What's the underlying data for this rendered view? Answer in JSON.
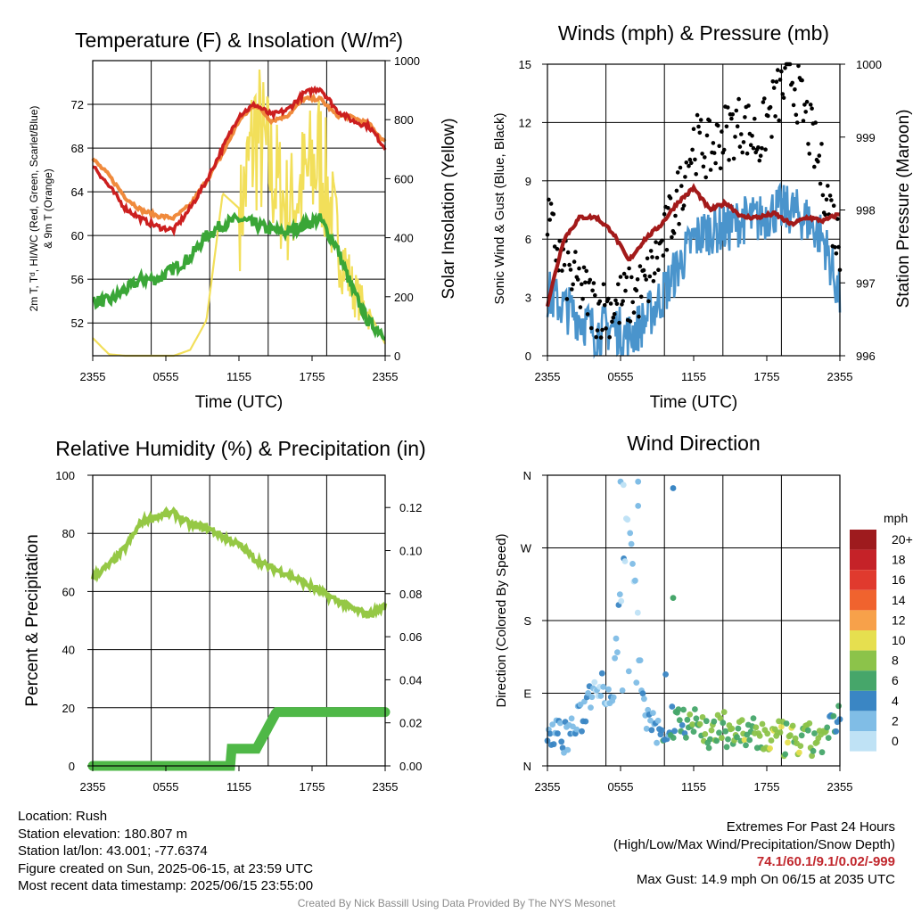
{
  "colors": {
    "temp": "#cc1f1f",
    "dewpoint": "#3aa637",
    "hiwc": "#e05a10",
    "temp9m": "#f08a3c",
    "insolation": "#f2df5a",
    "wind": "#4a94cc",
    "gust": "#000000",
    "pressure": "#a31a1a",
    "rh": "#95c845",
    "precip": "#4fb847"
  },
  "charts": [
    {
      "id": "temp",
      "title": "Temperature (F) & Insolation (W/m²)",
      "xlabel": "Time (UTC)",
      "ylabel_lines": [
        "2m T, Tᵈ, HI/WC (Red, Green, Scarlet/Blue)",
        "& 9m T (Orange)"
      ],
      "y2label": "Solar Insolation (Yellow)",
      "xticks": [
        "2355",
        "0555",
        "1155",
        "1755",
        "2355"
      ],
      "yticks": [
        "52",
        "56",
        "60",
        "64",
        "68",
        "72"
      ],
      "y2ticks": [
        "0",
        "200",
        "400",
        "600",
        "800",
        "1000"
      ]
    },
    {
      "id": "wind",
      "title": "Winds (mph) & Pressure (mb)",
      "xlabel": "Time (UTC)",
      "ylabel": "Sonic Wind & Gust (Blue, Black)",
      "y2label": "Station Pressure (Maroon)",
      "xticks": [
        "2355",
        "0555",
        "1155",
        "1755",
        "2355"
      ],
      "yticks": [
        "0",
        "3",
        "6",
        "9",
        "12",
        "15"
      ],
      "y2ticks": [
        "996",
        "997",
        "998",
        "999",
        "1000"
      ]
    },
    {
      "id": "rh",
      "title": "Relative Humidity (%) & Precipitation (in)",
      "ylabel": "Percent & Precipitation",
      "xticks": [
        "2355",
        "0555",
        "1155",
        "1755",
        "2355"
      ],
      "yticks": [
        "0",
        "20",
        "40",
        "60",
        "80",
        "100"
      ],
      "y2ticks": [
        "0.00",
        "0.02",
        "0.04",
        "0.06",
        "0.08",
        "0.10",
        "0.12"
      ]
    },
    {
      "id": "dir",
      "title": "Wind Direction",
      "ylabel": "Direction (Colored By Speed)",
      "xticks": [
        "2355",
        "0555",
        "1155",
        "1755",
        "2355"
      ],
      "yticks": [
        "N",
        "E",
        "S",
        "W",
        "N"
      ]
    }
  ],
  "legend": {
    "unit": "mph",
    "labels": [
      "20+",
      "18",
      "16",
      "14",
      "12",
      "10",
      "8",
      "6",
      "4",
      "2",
      "0"
    ],
    "colors": [
      "#9e1b1e",
      "#c52228",
      "#e03a2e",
      "#f0632e",
      "#f7a14a",
      "#e6df4f",
      "#8cc34a",
      "#46a66a",
      "#3a86c4",
      "#80bde6",
      "#bfe2f5"
    ]
  },
  "chart_data": [
    {
      "type": "line",
      "title": "Temperature (F) & Insolation (W/m²)",
      "xlabel": "Time (UTC)",
      "x": [
        "2355",
        "0155",
        "0355",
        "0555",
        "0755",
        "0955",
        "1155",
        "1255",
        "1355",
        "1455",
        "1555",
        "1655",
        "1755",
        "1855",
        "1955",
        "2055",
        "2155",
        "2255",
        "2355"
      ],
      "ylim": [
        49,
        76
      ],
      "y2lim": [
        0,
        1000
      ],
      "series": [
        {
          "name": "2m T",
          "axis": "left",
          "values": [
            66.5,
            64.5,
            62.5,
            61.5,
            60.8,
            60.5,
            62.5,
            65,
            68,
            71,
            72,
            71,
            71.5,
            73,
            73.5,
            71.5,
            70.5,
            70,
            68
          ]
        },
        {
          "name": "9m T",
          "axis": "left",
          "values": [
            67,
            65.5,
            63.5,
            62.3,
            61.8,
            61.6,
            62.8,
            65,
            67.5,
            70.5,
            72,
            70.5,
            71,
            72.5,
            72.5,
            71,
            70.8,
            70.2,
            68.5
          ]
        },
        {
          "name": "Td",
          "axis": "left",
          "values": [
            54,
            54,
            55,
            56,
            56,
            57,
            58,
            60,
            61,
            61.5,
            61,
            60.5,
            60.3,
            61,
            61.5,
            59,
            55,
            52,
            51
          ]
        },
        {
          "name": "Insolation",
          "axis": "right",
          "values": [
            60,
            5,
            0,
            0,
            0,
            0,
            20,
            120,
            550,
            500,
            850,
            700,
            550,
            650,
            750,
            450,
            250,
            150,
            40
          ]
        }
      ]
    },
    {
      "type": "line",
      "title": "Winds (mph) & Pressure (mb)",
      "xlabel": "Time (UTC)",
      "x": [
        "2355",
        "0155",
        "0355",
        "0555",
        "0755",
        "0955",
        "1155",
        "1255",
        "1355",
        "1455",
        "1555",
        "1655",
        "1755",
        "1855",
        "1955",
        "2055",
        "2155",
        "2255",
        "2355"
      ],
      "ylim": [
        0,
        15
      ],
      "y2lim": [
        996,
        1000
      ],
      "series": [
        {
          "name": "Sonic Wind",
          "axis": "left",
          "values": [
            3.2,
            2.5,
            2.0,
            1.2,
            1.5,
            1.0,
            1.8,
            3.0,
            4.5,
            6.0,
            6.5,
            6.5,
            7.0,
            7.0,
            7.5,
            7.5,
            7.0,
            6.0,
            3.0
          ]
        },
        {
          "name": "Gust",
          "axis": "left",
          "values": [
            7.0,
            4.5,
            3.5,
            2.5,
            2.5,
            3.0,
            3.5,
            5.5,
            8.0,
            11.0,
            10.5,
            11.5,
            12.0,
            11.0,
            13.0,
            14.5,
            12.0,
            9.0,
            5.5
          ]
        },
        {
          "name": "Pressure",
          "axis": "right",
          "values": [
            996.7,
            997.6,
            997.9,
            997.9,
            997.7,
            997.3,
            997.6,
            997.8,
            998.1,
            998.3,
            998.0,
            998.1,
            997.9,
            997.9,
            997.95,
            997.8,
            997.9,
            997.85,
            997.95
          ]
        }
      ]
    },
    {
      "type": "line",
      "title": "Relative Humidity (%) & Precipitation (in)",
      "x": [
        "2355",
        "0155",
        "0355",
        "0555",
        "0755",
        "0955",
        "1155",
        "1255",
        "1355",
        "1455",
        "1555",
        "1655",
        "1755",
        "1855",
        "1955",
        "2055",
        "2155",
        "2255",
        "2355"
      ],
      "ylim": [
        0,
        100
      ],
      "y2lim": [
        0,
        0.135
      ],
      "series": [
        {
          "name": "RH",
          "axis": "left",
          "values": [
            65,
            69,
            75,
            84,
            86,
            87,
            83,
            82,
            79,
            76,
            71,
            68,
            66,
            63,
            60,
            57,
            54,
            52,
            55
          ]
        },
        {
          "name": "Precip",
          "axis": "right",
          "values": [
            0,
            0,
            0,
            0,
            0,
            0,
            0,
            0,
            0.008,
            0.014,
            0.025,
            0.025,
            0.025,
            0.025,
            0.025,
            0.025,
            0.025,
            0.025,
            0.025
          ]
        }
      ]
    },
    {
      "type": "scatter",
      "title": "Wind Direction",
      "x": [
        "2355",
        "0155",
        "0355",
        "0555",
        "0755",
        "0955",
        "1155",
        "1255",
        "1355",
        "1455",
        "1555",
        "1655",
        "1755",
        "1855",
        "1955",
        "2055",
        "2155",
        "2255",
        "2355"
      ],
      "ylim": [
        0,
        360
      ],
      "series": [
        {
          "name": "Direction",
          "values": [
            45,
            35,
            55,
            110,
            85,
            330,
            50,
            45,
            60,
            55,
            40,
            45,
            40,
            35,
            35,
            30,
            30,
            35,
            55
          ]
        }
      ]
    }
  ],
  "footer": {
    "location": "Location: Rush",
    "elevation": "Station elevation: 180.807 m",
    "latlon": "Station lat/lon: 43.001; -77.6374",
    "created": "Figure created on Sun, 2025-06-15, at 23:59 UTC",
    "recent": "Most recent data timestamp: 2025/06/15 23:55:00",
    "extremes_title": "Extremes For Past 24 Hours",
    "extremes_sub": "(High/Low/Max Wind/Precipitation/Snow Depth)",
    "extremes_values": "74.1/60.1/9.1/0.02/-999",
    "max_gust": "Max Gust: 14.9 mph On 06/15 at 2035 UTC",
    "credit": "Created By Nick Bassill Using Data Provided By The NYS Mesonet"
  }
}
